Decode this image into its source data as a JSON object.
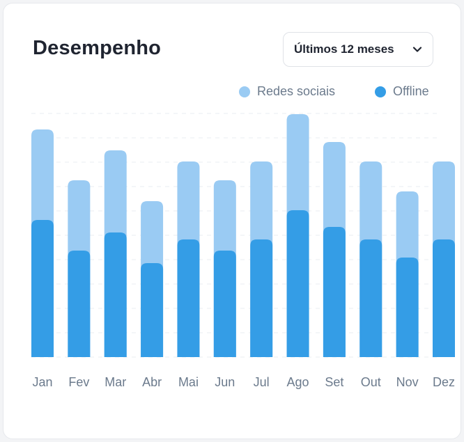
{
  "header": {
    "title": "Desempenho",
    "period_label": "Últimos 12 meses"
  },
  "colors": {
    "redes_sociais": "#9acbf3",
    "offline": "#349de6"
  },
  "chart_data": {
    "type": "bar",
    "stacked": true,
    "categories": [
      "Jan",
      "Fev",
      "Mar",
      "Abr",
      "Mai",
      "Jun",
      "Jul",
      "Ago",
      "Set",
      "Out",
      "Nov",
      "Dez"
    ],
    "series": [
      {
        "name": "Offline",
        "values": [
          197,
          153,
          179,
          135,
          169,
          153,
          169,
          211,
          187,
          169,
          143,
          169
        ]
      },
      {
        "name": "Redes sociais",
        "values": [
          130,
          101,
          118,
          89,
          112,
          101,
          112,
          138,
          122,
          112,
          95,
          112
        ]
      }
    ],
    "title": "Desempenho",
    "xlabel": "",
    "ylabel": "",
    "ylim": [
      0,
      350
    ],
    "grid": true,
    "legend": "top-right"
  }
}
